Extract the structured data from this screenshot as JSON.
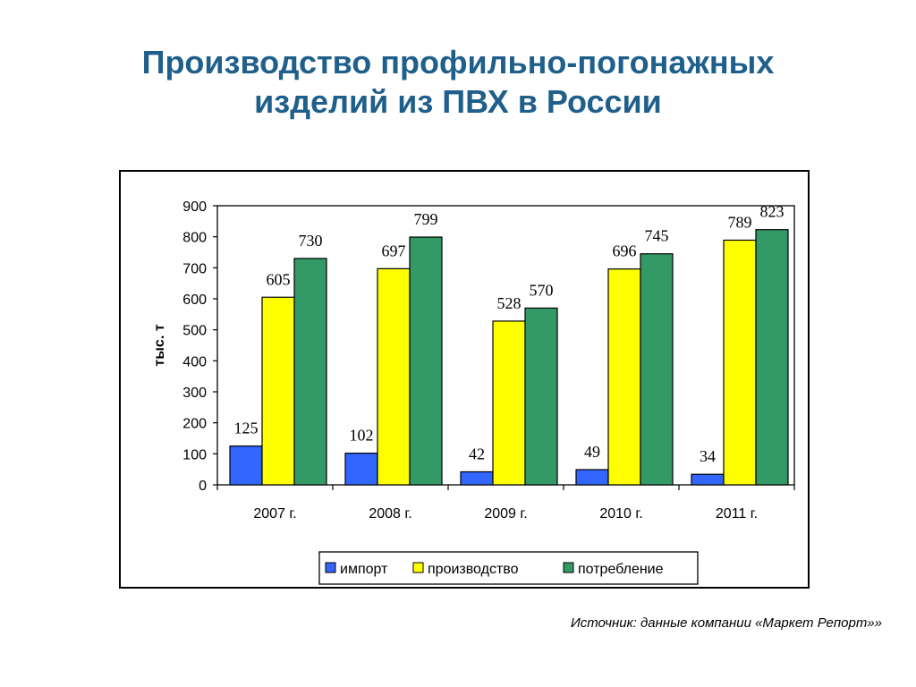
{
  "page": {
    "title_line1": "Производство профильно-погонажных",
    "title_line2": "изделий из ПВХ в России",
    "source": "Источник: данные компании «Маркет Репорт»»"
  },
  "chart_data": {
    "type": "bar",
    "categories": [
      "2007 г.",
      "2008 г.",
      "2009 г.",
      "2010 г.",
      "2011 г."
    ],
    "series": [
      {
        "name": "импорт",
        "values": [
          125,
          102,
          42,
          49,
          34
        ],
        "color": "#3366ff"
      },
      {
        "name": "производство",
        "values": [
          605,
          697,
          528,
          696,
          789
        ],
        "color": "#ffff00"
      },
      {
        "name": "потребление",
        "values": [
          730,
          799,
          570,
          745,
          823
        ],
        "color": "#339966"
      }
    ],
    "ylabel": "тыс. т",
    "xlabel": "",
    "ylim": [
      0,
      900
    ],
    "yticks": [
      0,
      100,
      200,
      300,
      400,
      500,
      600,
      700,
      800,
      900
    ],
    "grid": false,
    "legend": "bottom"
  }
}
